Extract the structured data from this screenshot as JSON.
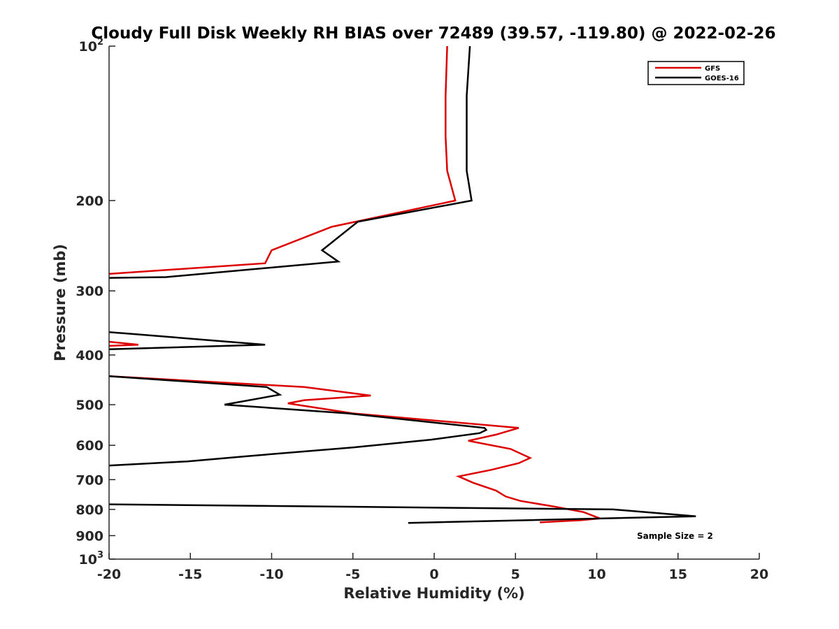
{
  "chart_data": {
    "type": "line",
    "title": "Cloudy Full Disk Weekly RH BIAS over 72489 (39.57, -119.80) @ 2022-02-26",
    "xlabel": "Relative Humidity (%)",
    "ylabel": "Pressure (mb)",
    "xlim": [
      -20,
      20
    ],
    "ylim": [
      100,
      1000
    ],
    "y_scale": "log",
    "y_reversed": true,
    "grid": false,
    "legend_position": "top-right",
    "x_ticks": [
      {
        "value": -20,
        "label": "-20"
      },
      {
        "value": -15,
        "label": "-15"
      },
      {
        "value": -10,
        "label": "-10"
      },
      {
        "value": -5,
        "label": "-5"
      },
      {
        "value": 0,
        "label": "0"
      },
      {
        "value": 5,
        "label": "5"
      },
      {
        "value": 10,
        "label": "10"
      },
      {
        "value": 15,
        "label": "15"
      },
      {
        "value": 20,
        "label": "20"
      }
    ],
    "y_ticks": [
      {
        "value": 100,
        "base": "10",
        "exp": "2"
      },
      {
        "value": 200,
        "base": "200",
        "exp": ""
      },
      {
        "value": 300,
        "base": "300",
        "exp": ""
      },
      {
        "value": 400,
        "base": "400",
        "exp": ""
      },
      {
        "value": 500,
        "base": "500",
        "exp": ""
      },
      {
        "value": 600,
        "base": "600",
        "exp": ""
      },
      {
        "value": 700,
        "base": "700",
        "exp": ""
      },
      {
        "value": 800,
        "base": "800",
        "exp": ""
      },
      {
        "value": 900,
        "base": "900",
        "exp": ""
      },
      {
        "value": 1000,
        "base": "10",
        "exp": "3"
      }
    ],
    "annotation": "Sample Size = 2",
    "series": [
      {
        "name": "GFS",
        "color": "#dd0000",
        "segments": [
          [
            [
              0.8,
              100
            ],
            [
              0.7,
              125
            ],
            [
              0.7,
              150
            ],
            [
              0.8,
              175
            ],
            [
              1.3,
              200
            ],
            [
              -6.3,
              225
            ],
            [
              -10.0,
              250
            ],
            [
              -10.4,
              265
            ],
            [
              -20,
              278
            ]
          ],
          [
            [
              -20,
              377
            ],
            [
              -18.2,
              382
            ],
            [
              -20,
              384
            ]
          ],
          [
            [
              -20,
              440
            ],
            [
              -8.0,
              462
            ],
            [
              -3.9,
              480
            ],
            [
              -8.0,
              490
            ],
            [
              -9.0,
              497
            ],
            [
              -5.0,
              520
            ],
            [
              5.2,
              555
            ],
            [
              3.8,
              572
            ],
            [
              2.1,
              588
            ],
            [
              4.7,
              610
            ],
            [
              5.9,
              635
            ],
            [
              5.2,
              650
            ],
            [
              3.5,
              670
            ],
            [
              1.5,
              690
            ],
            [
              2.4,
              710
            ],
            [
              3.8,
              735
            ],
            [
              4.4,
              755
            ],
            [
              5.3,
              770
            ],
            [
              7.4,
              790
            ],
            [
              9.2,
              810
            ],
            [
              10.2,
              833
            ],
            [
              9.0,
              840
            ],
            [
              6.5,
              848
            ]
          ]
        ]
      },
      {
        "name": "GOES-16",
        "color": "#000000",
        "segments": [
          [
            [
              2.2,
              100
            ],
            [
              2.0,
              125
            ],
            [
              2.0,
              150
            ],
            [
              2.0,
              175
            ],
            [
              2.3,
              200
            ],
            [
              -4.7,
              220
            ],
            [
              -6.9,
              250
            ],
            [
              -5.9,
              263
            ],
            [
              -16.5,
              282
            ],
            [
              -20,
              283
            ]
          ],
          [
            [
              -20,
              361
            ],
            [
              -18.6,
              364
            ],
            [
              -10.4,
              382
            ],
            [
              -20,
              390
            ]
          ],
          [
            [
              -20,
              440
            ],
            [
              -10.3,
              462
            ],
            [
              -9.5,
              478
            ],
            [
              -12.9,
              500
            ],
            [
              -5.3,
              520
            ],
            [
              3.1,
              555
            ],
            [
              3.2,
              560
            ],
            [
              2.8,
              568
            ],
            [
              -0.2,
              585
            ],
            [
              -4.8,
              605
            ],
            [
              -11.5,
              630
            ],
            [
              -15.2,
              645
            ],
            [
              -20,
              657
            ]
          ],
          [
            [
              -20,
              782
            ],
            [
              11.0,
              800
            ],
            [
              16.1,
              825
            ],
            [
              -1.6,
              850
            ]
          ]
        ]
      }
    ]
  }
}
